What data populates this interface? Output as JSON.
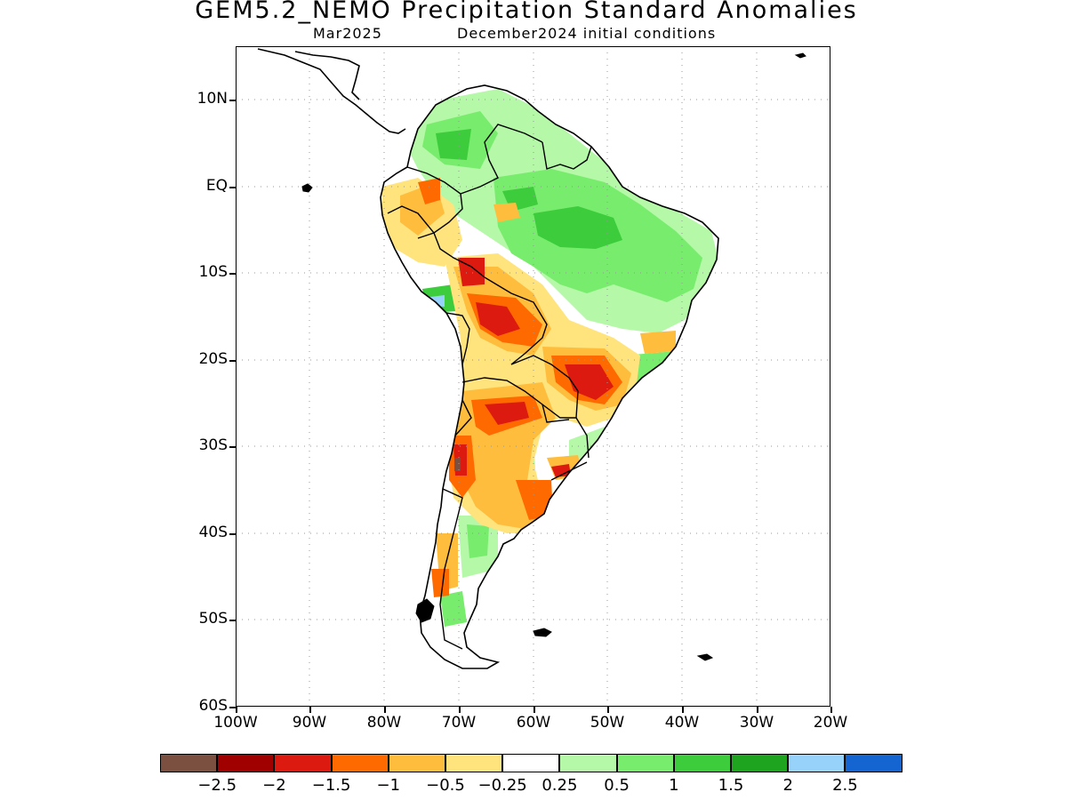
{
  "header": {
    "title": "GEM5.2_NEMO Precipitation Standard Anomalies",
    "valid_month": "Mar2025",
    "init_conditions": "December2024 initial conditions"
  },
  "axes": {
    "lat_labels": [
      "10N",
      "EQ",
      "10S",
      "20S",
      "30S",
      "40S",
      "50S",
      "60S"
    ],
    "lon_labels": [
      "100W",
      "90W",
      "80W",
      "70W",
      "60W",
      "50W",
      "40W",
      "30W",
      "20W"
    ]
  },
  "colorbar": {
    "colors": [
      "#7b5040",
      "#a00000",
      "#dc1a10",
      "#ff6a00",
      "#ffbd3e",
      "#ffe47e",
      "#ffffff",
      "#b4f8a8",
      "#78ec6c",
      "#3ccc3c",
      "#1ea41e",
      "#96d2fa",
      "#1464d2"
    ],
    "labels": [
      "−2.5",
      "−2",
      "−1.5",
      "−1",
      "−0.5",
      "−0.25",
      "0.25",
      "0.5",
      "1",
      "1.5",
      "2",
      "2.5"
    ]
  }
}
